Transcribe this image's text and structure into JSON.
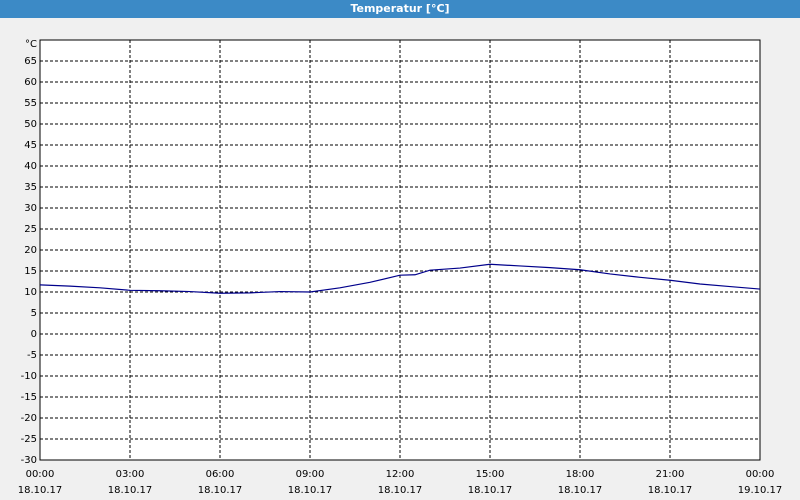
{
  "chart_data": {
    "type": "line",
    "title": "Temperatur [°C]",
    "y_unit": "°C",
    "x": [
      0,
      1,
      2,
      3,
      4,
      5,
      6,
      7,
      8,
      9,
      10,
      11,
      12,
      12.5,
      13,
      14,
      15,
      16,
      17,
      18,
      19,
      20,
      21,
      22,
      23,
      24
    ],
    "series": [
      {
        "name": "Temperatur",
        "color": "#00008b",
        "values": [
          11.7,
          11.4,
          11,
          10.4,
          10.3,
          10.1,
          9.7,
          9.8,
          10.1,
          10.0,
          11,
          12.3,
          14,
          14.1,
          15.2,
          15.7,
          16.6,
          16.2,
          15.8,
          15.3,
          14.3,
          13.5,
          12.8,
          11.9,
          11.3,
          10.7
        ]
      }
    ],
    "xlim": [
      0,
      24
    ],
    "xticks": [
      {
        "value": 0,
        "label": "00:00",
        "date": "18.10.17"
      },
      {
        "value": 3,
        "label": "03:00",
        "date": "18.10.17"
      },
      {
        "value": 6,
        "label": "06:00",
        "date": "18.10.17"
      },
      {
        "value": 9,
        "label": "09:00",
        "date": "18.10.17"
      },
      {
        "value": 12,
        "label": "12:00",
        "date": "18.10.17"
      },
      {
        "value": 15,
        "label": "15:00",
        "date": "18.10.17"
      },
      {
        "value": 18,
        "label": "18:00",
        "date": "18.10.17"
      },
      {
        "value": 21,
        "label": "21:00",
        "date": "18.10.17"
      },
      {
        "value": 24,
        "label": "00:00",
        "date": "19.10.17"
      }
    ],
    "ylim": [
      -30,
      70
    ],
    "yticks": [
      -30,
      -25,
      -20,
      -15,
      -10,
      -5,
      0,
      5,
      10,
      15,
      20,
      25,
      30,
      35,
      40,
      45,
      50,
      55,
      60,
      65
    ],
    "grid": true
  }
}
